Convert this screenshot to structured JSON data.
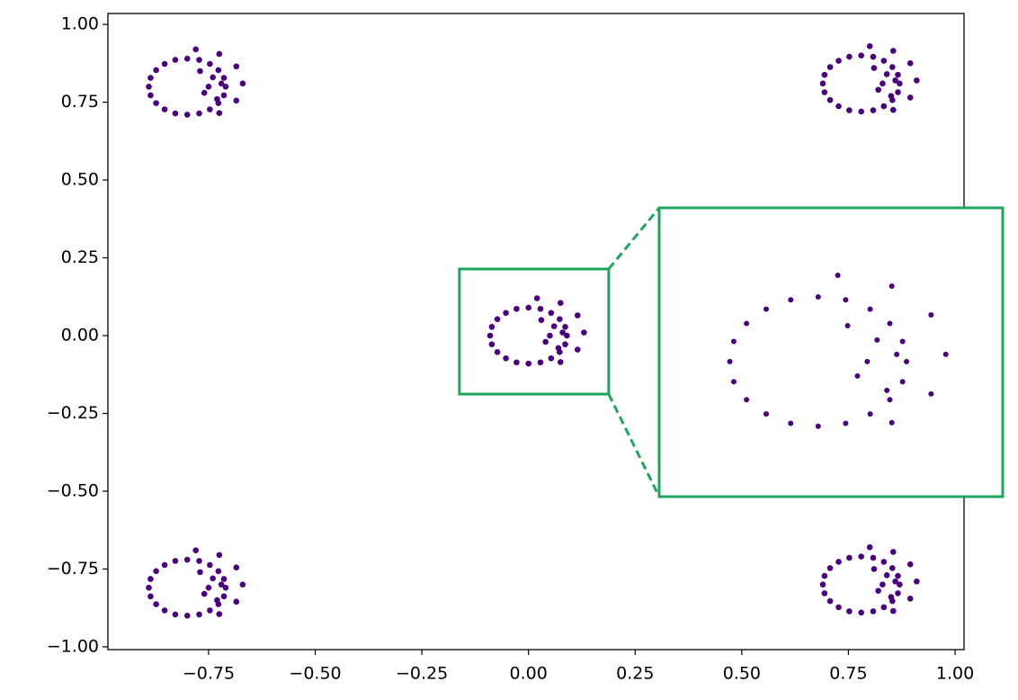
{
  "chart_data": {
    "type": "scatter",
    "color": "#4b0082",
    "x": [
      -0.71,
      -0.714,
      -0.727,
      -0.747,
      -0.772,
      -0.8,
      -0.828,
      -0.853,
      -0.873,
      -0.886,
      -0.89,
      -0.886,
      -0.873,
      -0.853,
      -0.828,
      -0.8,
      -0.772,
      -0.747,
      -0.727,
      -0.714,
      -0.725,
      -0.685,
      -0.67,
      -0.685,
      -0.725,
      -0.78,
      -0.76,
      -0.74,
      -0.77,
      -0.73,
      -0.75,
      -0.72,
      0.87,
      0.866,
      0.853,
      0.833,
      0.808,
      0.78,
      0.752,
      0.727,
      0.707,
      0.694,
      0.69,
      0.694,
      0.707,
      0.727,
      0.752,
      0.78,
      0.808,
      0.833,
      0.853,
      0.866,
      0.855,
      0.895,
      0.91,
      0.895,
      0.855,
      0.8,
      0.82,
      0.84,
      0.81,
      0.85,
      0.83,
      0.86,
      0.09,
      0.086,
      0.073,
      0.053,
      0.028,
      0.0,
      -0.028,
      -0.053,
      -0.073,
      -0.086,
      -0.09,
      -0.086,
      -0.073,
      -0.053,
      -0.028,
      0.0,
      0.028,
      0.053,
      0.073,
      0.086,
      0.075,
      0.115,
      0.13,
      0.115,
      0.075,
      0.02,
      0.04,
      0.06,
      0.03,
      0.07,
      0.05,
      0.08,
      -0.71,
      -0.714,
      -0.727,
      -0.747,
      -0.772,
      -0.8,
      -0.828,
      -0.853,
      -0.873,
      -0.886,
      -0.89,
      -0.886,
      -0.873,
      -0.853,
      -0.828,
      -0.8,
      -0.772,
      -0.747,
      -0.727,
      -0.714,
      -0.725,
      -0.685,
      -0.67,
      -0.685,
      -0.725,
      -0.78,
      -0.76,
      -0.74,
      -0.77,
      -0.73,
      -0.75,
      -0.72,
      0.87,
      0.866,
      0.853,
      0.833,
      0.808,
      0.78,
      0.752,
      0.727,
      0.707,
      0.694,
      0.69,
      0.694,
      0.707,
      0.727,
      0.752,
      0.78,
      0.808,
      0.833,
      0.853,
      0.866,
      0.855,
      0.895,
      0.91,
      0.895,
      0.855,
      0.8,
      0.82,
      0.84,
      0.81,
      0.85,
      0.83,
      0.86
    ],
    "values": [
      0.8,
      0.828,
      0.853,
      0.873,
      0.886,
      0.89,
      0.886,
      0.873,
      0.853,
      0.828,
      0.8,
      0.772,
      0.747,
      0.727,
      0.714,
      0.71,
      0.714,
      0.727,
      0.747,
      0.772,
      0.715,
      0.755,
      0.81,
      0.865,
      0.905,
      0.92,
      0.78,
      0.83,
      0.85,
      0.76,
      0.8,
      0.81,
      0.81,
      0.838,
      0.863,
      0.883,
      0.896,
      0.9,
      0.896,
      0.883,
      0.863,
      0.838,
      0.81,
      0.782,
      0.757,
      0.737,
      0.724,
      0.72,
      0.724,
      0.737,
      0.757,
      0.782,
      0.725,
      0.765,
      0.82,
      0.875,
      0.915,
      0.93,
      0.79,
      0.84,
      0.86,
      0.77,
      0.81,
      0.82,
      0.0,
      0.028,
      0.053,
      0.073,
      0.086,
      0.09,
      0.086,
      0.073,
      0.053,
      0.028,
      0.0,
      -0.028,
      -0.053,
      -0.073,
      -0.086,
      -0.09,
      -0.086,
      -0.073,
      -0.053,
      -0.028,
      -0.085,
      -0.045,
      0.01,
      0.065,
      0.105,
      0.12,
      -0.02,
      0.03,
      0.05,
      -0.04,
      0.0,
      0.01,
      -0.81,
      -0.782,
      -0.757,
      -0.737,
      -0.724,
      -0.72,
      -0.724,
      -0.737,
      -0.757,
      -0.782,
      -0.81,
      -0.838,
      -0.863,
      -0.883,
      -0.896,
      -0.9,
      -0.896,
      -0.883,
      -0.863,
      -0.838,
      -0.895,
      -0.855,
      -0.8,
      -0.745,
      -0.705,
      -0.69,
      -0.83,
      -0.78,
      -0.76,
      -0.85,
      -0.81,
      -0.8,
      -0.8,
      -0.772,
      -0.747,
      -0.727,
      -0.714,
      -0.71,
      -0.714,
      -0.727,
      -0.747,
      -0.772,
      -0.8,
      -0.828,
      -0.853,
      -0.873,
      -0.886,
      -0.89,
      -0.886,
      -0.873,
      -0.853,
      -0.828,
      -0.885,
      -0.845,
      -0.79,
      -0.735,
      -0.695,
      -0.68,
      -0.82,
      -0.77,
      -0.75,
      -0.84,
      -0.8,
      -0.79
    ],
    "xlim": [
      -0.986,
      1.021
    ],
    "ylim": [
      -1.009,
      1.035
    ],
    "xticks": [
      {
        "value": -0.75,
        "label": "−0.75"
      },
      {
        "value": -0.5,
        "label": "−0.50"
      },
      {
        "value": -0.25,
        "label": "−0.25"
      },
      {
        "value": 0,
        "label": "0.00"
      },
      0.25,
      {
        "value": 0.5,
        "label": "0.50"
      },
      0.75,
      {
        "value": 1,
        "label": "1.00"
      }
    ],
    "yticks": [
      {
        "value": -1,
        "label": "−1.00"
      },
      {
        "value": -0.75,
        "label": "−0.75"
      },
      {
        "value": -0.5,
        "label": "−0.50"
      },
      {
        "value": -0.25,
        "label": "−0.25"
      },
      {
        "value": 0,
        "label": "0.00"
      },
      0.25,
      {
        "value": 0.5,
        "label": "0.50"
      },
      0.75,
      {
        "value": 1,
        "label": "1.00"
      }
    ],
    "inset": {
      "xlim": [
        -0.162,
        0.188
      ],
      "ylim": [
        -0.188,
        0.214
      ],
      "color": "#1ea75a"
    }
  }
}
